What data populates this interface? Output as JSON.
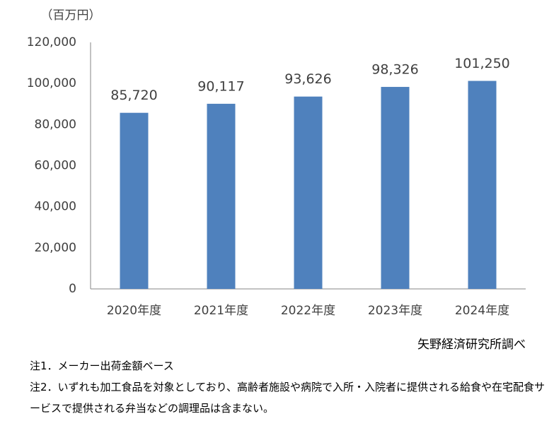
{
  "chart_data": {
    "type": "bar",
    "unit_label": "（百万円）",
    "categories": [
      "2020年度",
      "2021年度",
      "2022年度",
      "2023年度",
      "2024年度"
    ],
    "values": [
      85720,
      90117,
      93626,
      98326,
      101250
    ],
    "value_labels": [
      "85,720",
      "90,117",
      "93,626",
      "98,326",
      "101,250"
    ],
    "color": "#4f81bd",
    "ylim": [
      0,
      120000
    ],
    "yticks": [
      0,
      {
        "value": 20000,
        "label": "20,000"
      },
      {
        "value": 40000,
        "label": "40,000"
      },
      {
        "value": 60000,
        "label": "60,000"
      },
      {
        "value": 80000,
        "label": "80,000"
      },
      {
        "value": 100000,
        "label": "100,000"
      },
      {
        "value": 120000,
        "label": "120,000"
      }
    ],
    "grid": false,
    "source": "矢野経済研究所調べ",
    "notes": [
      "注1．メーカー出荷金額ベース",
      "注2．いずれも加工食品を対象としており、高齢者施設や病院で入所・入院者に提供される給食や在宅配食サービスで提供される弁当などの調理品は含まない。"
    ]
  }
}
